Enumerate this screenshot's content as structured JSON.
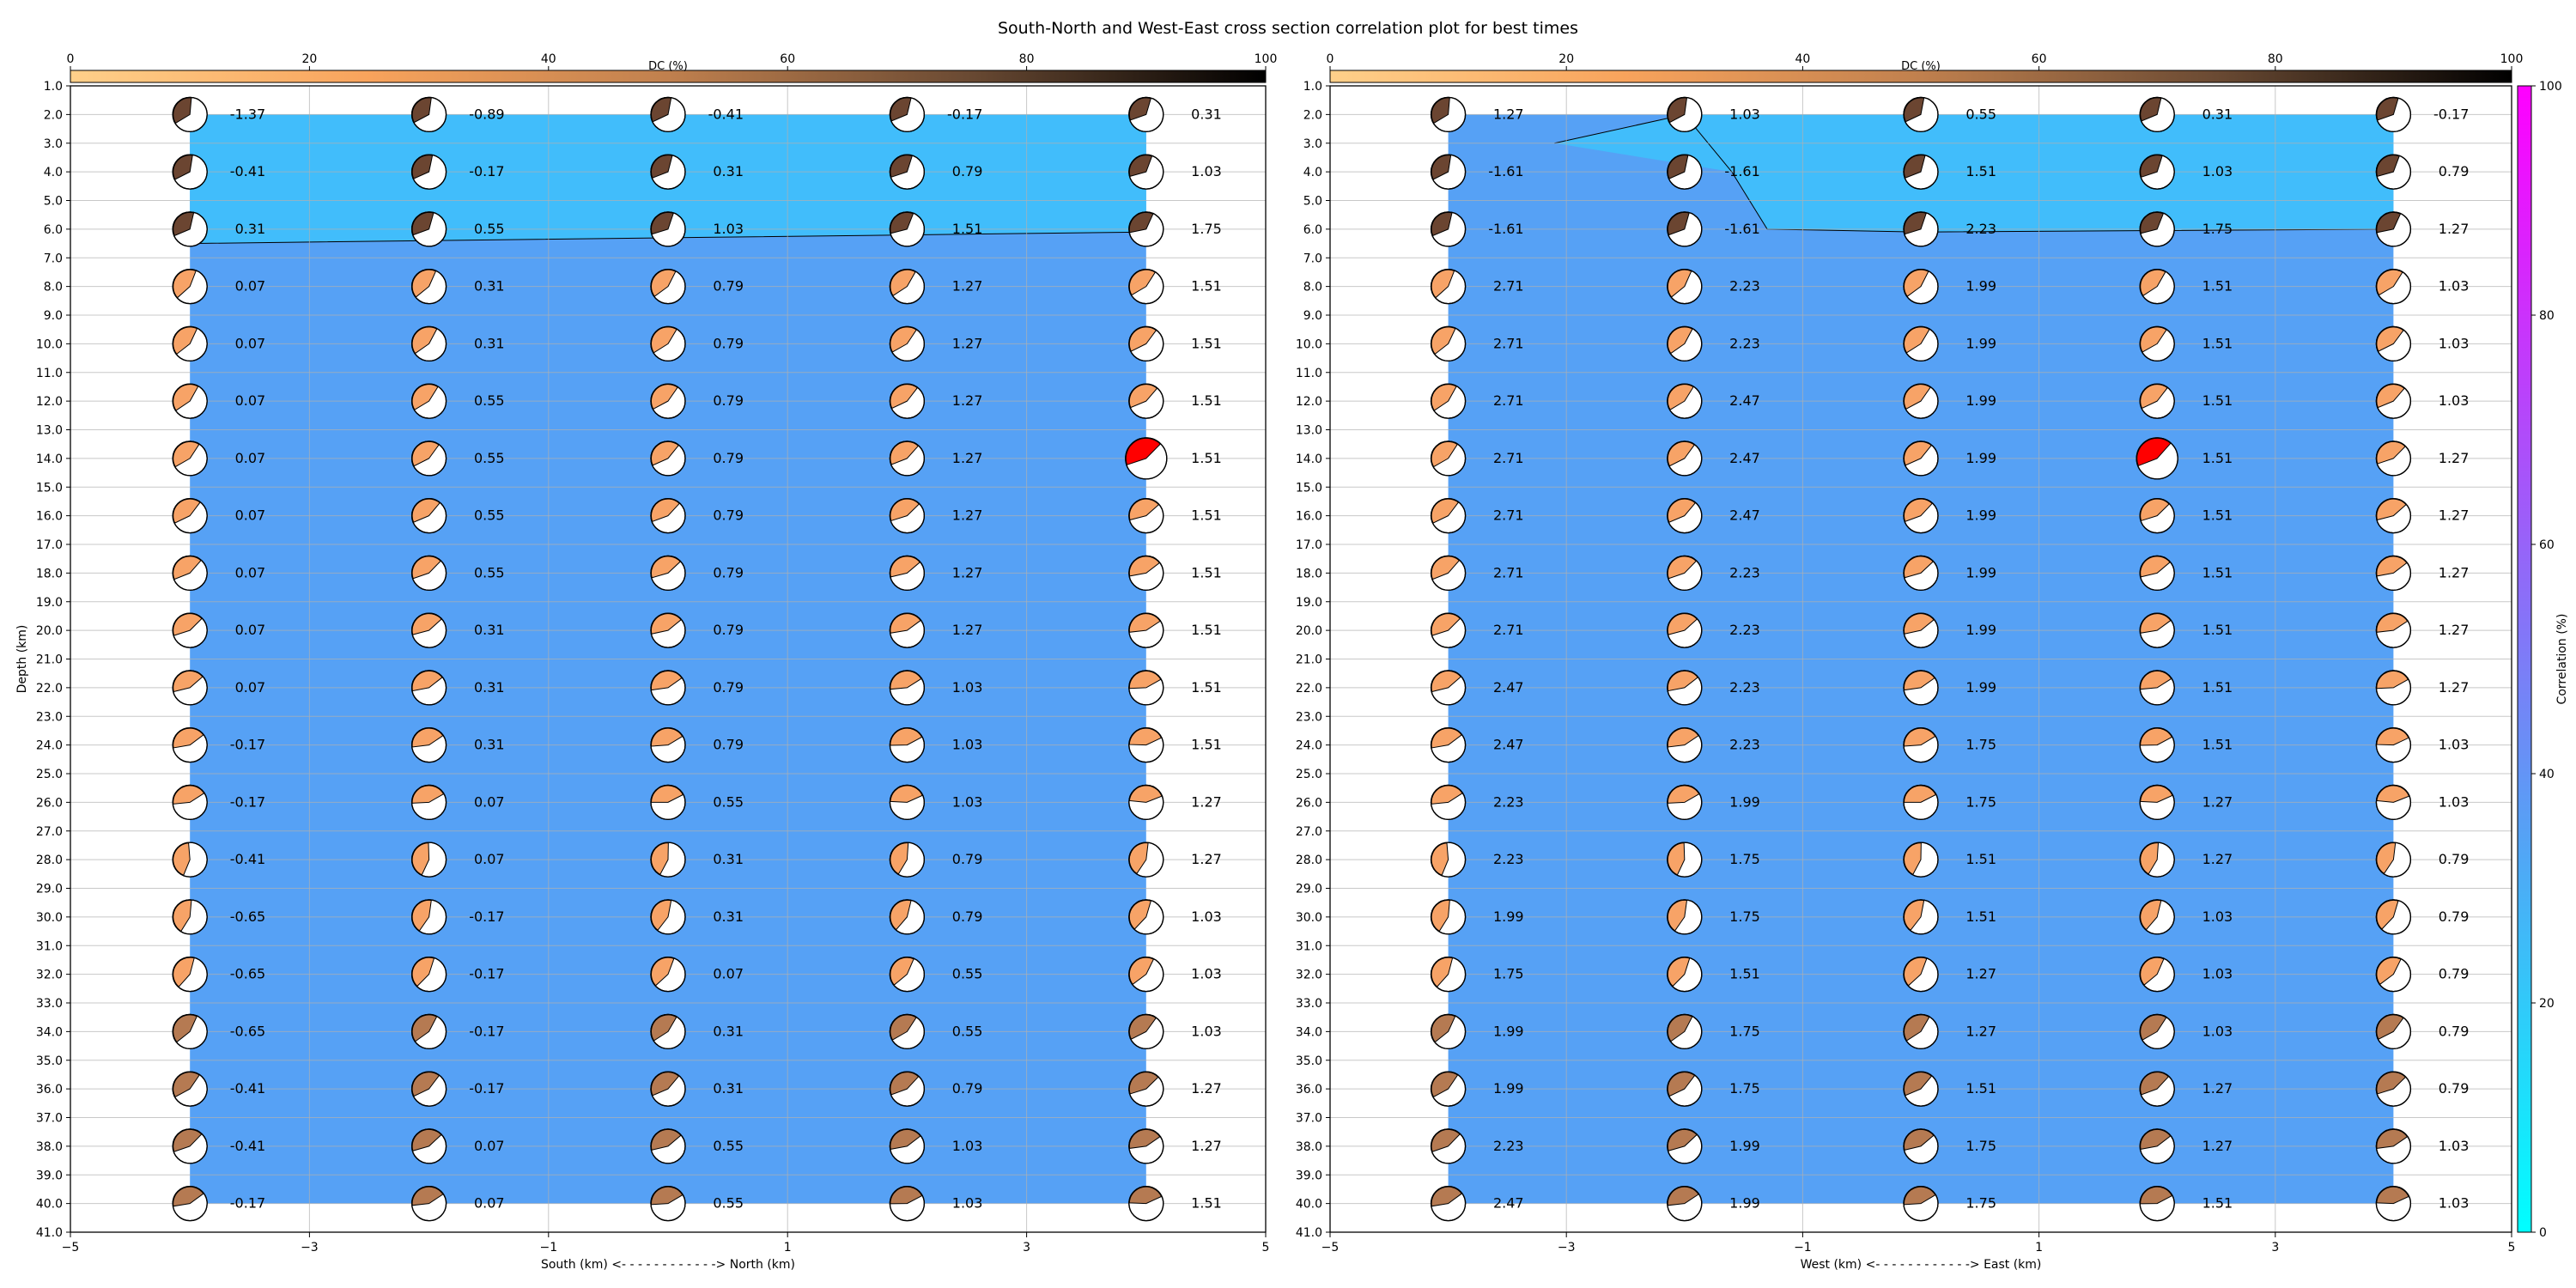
{
  "figure_title": "South-North and West-East cross section correlation plot for best times",
  "chart_data": [
    {
      "type": "heatmap",
      "subtype": "focal-mechanism cross section",
      "xlabel": "South (km) <- - - - - - - - - - - -> North (km)",
      "ylabel": "Depth (km)",
      "xlim": [
        -5,
        5
      ],
      "ylim": [
        41,
        1
      ],
      "y_inverted": true,
      "x_ticks": [
        "-5",
        "-3",
        "-1",
        "1",
        "3",
        "5"
      ],
      "y_ticks": [
        "1.0",
        "2.0",
        "3.0",
        "4.0",
        "5.0",
        "6.0",
        "7.0",
        "8.0",
        "9.0",
        "10.0",
        "11.0",
        "12.0",
        "13.0",
        "14.0",
        "15.0",
        "16.0",
        "17.0",
        "18.0",
        "19.0",
        "20.0",
        "21.0",
        "22.0",
        "23.0",
        "24.0",
        "25.0",
        "26.0",
        "27.0",
        "28.0",
        "29.0",
        "30.0",
        "31.0",
        "32.0",
        "33.0",
        "34.0",
        "35.0",
        "36.0",
        "37.0",
        "38.0",
        "39.0",
        "40.0",
        "41.0"
      ],
      "grid": true,
      "colorbar": {
        "label": "DC (%)",
        "ticks": [
          "0",
          "20",
          "40",
          "60",
          "80",
          "100"
        ],
        "placement": "top"
      },
      "x_positions": [
        -4,
        -2,
        0,
        2,
        4
      ],
      "depths": [
        2,
        4,
        6,
        8,
        10,
        12,
        14,
        16,
        18,
        20,
        22,
        24,
        26,
        28,
        30,
        32,
        34,
        36,
        38,
        40
      ],
      "region_colors": {
        "shallow": "#41bdfb",
        "deep": "#56a1f5"
      },
      "boundary_line_x": [
        -4,
        -2,
        0,
        2,
        4
      ],
      "boundary_line_depth": [
        6.5,
        6.4,
        6.3,
        6.2,
        6.1
      ],
      "values": [
        [
          "-1.37",
          "-0.89",
          "-0.41",
          "-0.17",
          "0.31"
        ],
        [
          "-0.41",
          "-0.17",
          "0.31",
          "0.79",
          "1.03"
        ],
        [
          "0.31",
          "0.55",
          "1.03",
          "1.51",
          "1.75"
        ],
        [
          "0.07",
          "0.31",
          "0.79",
          "1.27",
          "1.51"
        ],
        [
          "0.07",
          "0.31",
          "0.79",
          "1.27",
          "1.51"
        ],
        [
          "0.07",
          "0.55",
          "0.79",
          "1.27",
          "1.51"
        ],
        [
          "0.07",
          "0.55",
          "0.79",
          "1.27",
          "1.51"
        ],
        [
          "0.07",
          "0.55",
          "0.79",
          "1.27",
          "1.51"
        ],
        [
          "0.07",
          "0.55",
          "0.79",
          "1.27",
          "1.51"
        ],
        [
          "0.07",
          "0.31",
          "0.79",
          "1.27",
          "1.51"
        ],
        [
          "0.07",
          "0.31",
          "0.79",
          "1.03",
          "1.51"
        ],
        [
          "-0.17",
          "0.31",
          "0.79",
          "1.03",
          "1.51"
        ],
        [
          "-0.17",
          "0.07",
          "0.55",
          "1.03",
          "1.27"
        ],
        [
          "-0.41",
          "0.07",
          "0.31",
          "0.79",
          "1.27"
        ],
        [
          "-0.65",
          "-0.17",
          "0.31",
          "0.79",
          "1.03"
        ],
        [
          "-0.65",
          "-0.17",
          "0.07",
          "0.55",
          "1.03"
        ],
        [
          "-0.65",
          "-0.17",
          "0.31",
          "0.55",
          "1.03"
        ],
        [
          "-0.41",
          "-0.17",
          "0.31",
          "0.79",
          "1.27"
        ],
        [
          "-0.41",
          "0.07",
          "0.55",
          "1.03",
          "1.27"
        ],
        [
          "-0.17",
          "0.07",
          "0.55",
          "1.03",
          "1.51"
        ]
      ],
      "best_solution": {
        "x": 4,
        "depth": 14
      }
    },
    {
      "type": "heatmap",
      "subtype": "focal-mechanism cross section",
      "xlabel": "West (km) <- - - - - - - - - - - -> East (km)",
      "ylabel": "",
      "xlim": [
        -5,
        5
      ],
      "ylim": [
        41,
        1
      ],
      "y_inverted": true,
      "x_ticks": [
        "-5",
        "-3",
        "-1",
        "1",
        "3",
        "5"
      ],
      "y_ticks": [
        "1.0",
        "2.0",
        "3.0",
        "4.0",
        "5.0",
        "6.0",
        "7.0",
        "8.0",
        "9.0",
        "10.0",
        "11.0",
        "12.0",
        "13.0",
        "14.0",
        "15.0",
        "16.0",
        "17.0",
        "18.0",
        "19.0",
        "20.0",
        "21.0",
        "22.0",
        "23.0",
        "24.0",
        "25.0",
        "26.0",
        "27.0",
        "28.0",
        "29.0",
        "30.0",
        "31.0",
        "32.0",
        "33.0",
        "34.0",
        "35.0",
        "36.0",
        "37.0",
        "38.0",
        "39.0",
        "40.0",
        "41.0"
      ],
      "grid": true,
      "colorbar": {
        "label": "DC (%)",
        "ticks": [
          "0",
          "20",
          "40",
          "60",
          "80",
          "100"
        ],
        "placement": "top"
      },
      "x_positions": [
        -4,
        -2,
        0,
        2,
        4
      ],
      "depths": [
        2,
        4,
        6,
        8,
        10,
        12,
        14,
        16,
        18,
        20,
        22,
        24,
        26,
        28,
        30,
        32,
        34,
        36,
        38,
        40
      ],
      "region_colors": {
        "shallow": "#41bdfb",
        "deep": "#56a1f5"
      },
      "boundary_line_x": [
        -3.1,
        -2,
        -1.6,
        -1.3,
        0,
        2,
        4
      ],
      "boundary_line_depth": [
        3,
        2,
        4,
        6,
        6.1,
        6.05,
        6
      ],
      "values": [
        [
          "1.27",
          "1.03",
          "0.55",
          "0.31",
          "-0.17"
        ],
        [
          "-1.61",
          "-1.61",
          "1.51",
          "1.03",
          "0.79"
        ],
        [
          "-1.61",
          "-1.61",
          "2.23",
          "1.75",
          "1.27"
        ],
        [
          "2.71",
          "2.23",
          "1.99",
          "1.51",
          "1.03"
        ],
        [
          "2.71",
          "2.23",
          "1.99",
          "1.51",
          "1.03"
        ],
        [
          "2.71",
          "2.47",
          "1.99",
          "1.51",
          "1.03"
        ],
        [
          "2.71",
          "2.47",
          "1.99",
          "1.51",
          "1.27"
        ],
        [
          "2.71",
          "2.47",
          "1.99",
          "1.51",
          "1.27"
        ],
        [
          "2.71",
          "2.23",
          "1.99",
          "1.51",
          "1.27"
        ],
        [
          "2.71",
          "2.23",
          "1.99",
          "1.51",
          "1.27"
        ],
        [
          "2.47",
          "2.23",
          "1.99",
          "1.51",
          "1.27"
        ],
        [
          "2.47",
          "2.23",
          "1.75",
          "1.51",
          "1.03"
        ],
        [
          "2.23",
          "1.99",
          "1.75",
          "1.27",
          "1.03"
        ],
        [
          "2.23",
          "1.75",
          "1.51",
          "1.27",
          "0.79"
        ],
        [
          "1.99",
          "1.75",
          "1.51",
          "1.03",
          "0.79"
        ],
        [
          "1.75",
          "1.51",
          "1.27",
          "1.03",
          "0.79"
        ],
        [
          "1.99",
          "1.75",
          "1.27",
          "1.03",
          "0.79"
        ],
        [
          "1.99",
          "1.75",
          "1.51",
          "1.27",
          "0.79"
        ],
        [
          "2.23",
          "1.99",
          "1.75",
          "1.27",
          "1.03"
        ],
        [
          "2.47",
          "1.99",
          "1.75",
          "1.51",
          "1.03"
        ]
      ],
      "best_solution": {
        "x": 2,
        "depth": 14
      }
    }
  ],
  "correlation_colorbar": {
    "label": "Correlation (%)",
    "ticks": [
      "0",
      "20",
      "40",
      "60",
      "80",
      "100"
    ],
    "colors": [
      "#00ffff",
      "#ff00ff"
    ]
  },
  "dc_colorbar_colors": [
    "#ffd08a",
    "#f8a35c",
    "#c0804e",
    "#6a4a33",
    "#000000"
  ],
  "beachball_colors": {
    "deep_dc": "#6b4531",
    "mid_dc": "#b57a52",
    "low_dc": "#f7a367",
    "best": "#ff0000"
  }
}
